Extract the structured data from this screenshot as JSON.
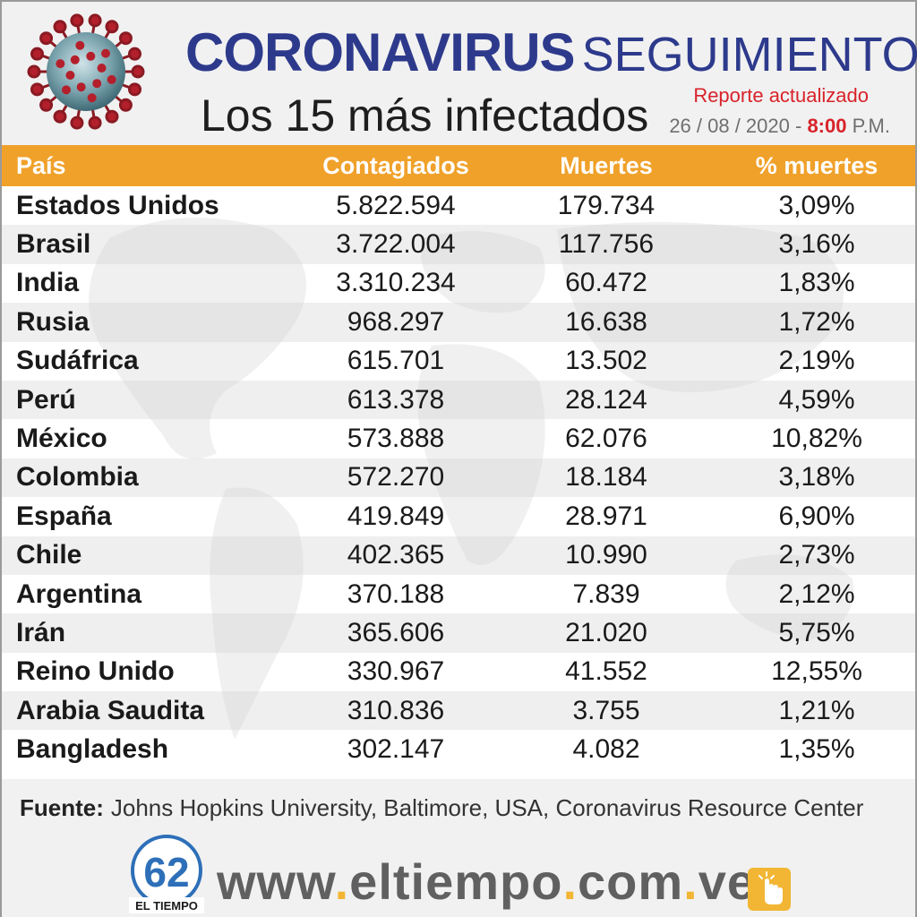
{
  "header": {
    "title_main": "CORONAVIRUS",
    "title_sub": "SEGUIMIENTO",
    "subtitle": "Los 15 más infectados",
    "report_label": "Reporte actualizado",
    "date": "26 / 08 / 2020 -",
    "time": "8:00",
    "time_suffix": "P.M."
  },
  "table": {
    "columns": [
      "País",
      "Contagiados",
      "Muertes",
      "% muertes"
    ],
    "rows": [
      {
        "country": "Estados Unidos",
        "cases": "5.822.594",
        "deaths": "179.734",
        "pct": "3,09%"
      },
      {
        "country": "Brasil",
        "cases": "3.722.004",
        "deaths": "117.756",
        "pct": "3,16%"
      },
      {
        "country": "India",
        "cases": "3.310.234",
        "deaths": "60.472",
        "pct": "1,83%"
      },
      {
        "country": "Rusia",
        "cases": "968.297",
        "deaths": "16.638",
        "pct": "1,72%"
      },
      {
        "country": "Sudáfrica",
        "cases": "615.701",
        "deaths": "13.502",
        "pct": "2,19%"
      },
      {
        "country": "Perú",
        "cases": "613.378",
        "deaths": "28.124",
        "pct": "4,59%"
      },
      {
        "country": "México",
        "cases": "573.888",
        "deaths": "62.076",
        "pct": "10,82%"
      },
      {
        "country": "Colombia",
        "cases": "572.270",
        "deaths": "18.184",
        "pct": "3,18%"
      },
      {
        "country": "España",
        "cases": "419.849",
        "deaths": "28.971",
        "pct": "6,90%"
      },
      {
        "country": "Chile",
        "cases": "402.365",
        "deaths": "10.990",
        "pct": "2,73%"
      },
      {
        "country": "Argentina",
        "cases": "370.188",
        "deaths": "7.839",
        "pct": "2,12%"
      },
      {
        "country": "Irán",
        "cases": "365.606",
        "deaths": "21.020",
        "pct": "5,75%"
      },
      {
        "country": "Reino Unido",
        "cases": "330.967",
        "deaths": "41.552",
        "pct": "12,55%"
      },
      {
        "country": "Arabia Saudita",
        "cases": "310.836",
        "deaths": "3.755",
        "pct": "1,21%"
      },
      {
        "country": "Bangladesh",
        "cases": "302.147",
        "deaths": "4.082",
        "pct": "1,35%"
      }
    ]
  },
  "source": {
    "label": "Fuente:",
    "text": "Johns Hopkins University, Baltimore, USA, Coronavirus Resource Center"
  },
  "footer": {
    "url_parts": [
      "www",
      ".",
      "eltiempo",
      ".",
      "com",
      ".",
      "ve"
    ],
    "logo_number": "62",
    "logo_name": "EL TIEMPO"
  },
  "colors": {
    "title_blue": "#2d3a8c",
    "accent_orange": "#f0a12a",
    "report_red": "#d8232a",
    "url_dot_yellow": "#f2b634"
  },
  "icons": [
    "coronavirus-illustration",
    "world-map-background",
    "el-tiempo-logo",
    "click-hand-icon"
  ]
}
